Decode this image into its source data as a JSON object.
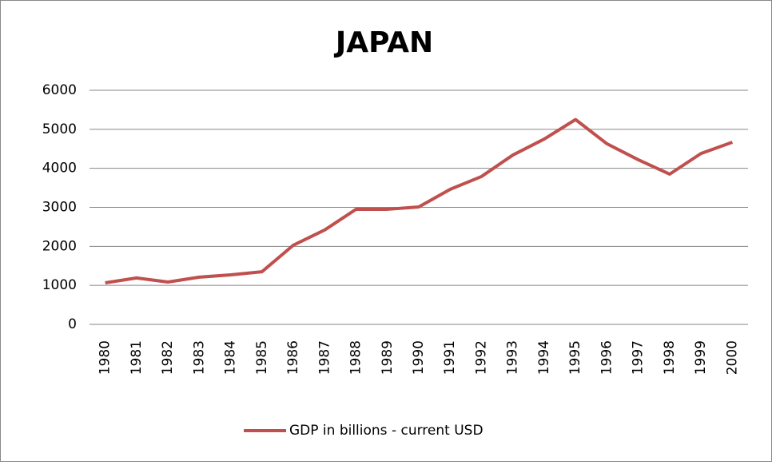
{
  "chart_data": {
    "type": "line",
    "title": "JAPAN",
    "categories": [
      "1980",
      "1981",
      "1982",
      "1983",
      "1984",
      "1985",
      "1986",
      "1987",
      "1988",
      "1989",
      "1990",
      "1991",
      "1992",
      "1993",
      "1994",
      "1995",
      "1996",
      "1997",
      "1998",
      "1999",
      "2000"
    ],
    "series": [
      {
        "name": "GDP in billions - current USD",
        "color": "#c0504d",
        "values": [
          1065,
          1190,
          1085,
          1210,
          1270,
          1350,
          2030,
          2420,
          2950,
          2950,
          3010,
          3460,
          3790,
          4340,
          4750,
          5250,
          4630,
          4220,
          3850,
          4380,
          4670
        ]
      }
    ],
    "ylim": [
      0,
      6000
    ],
    "yticks": [
      0,
      1000,
      2000,
      3000,
      4000,
      5000,
      6000
    ],
    "grid": true,
    "legend": "bottom"
  }
}
